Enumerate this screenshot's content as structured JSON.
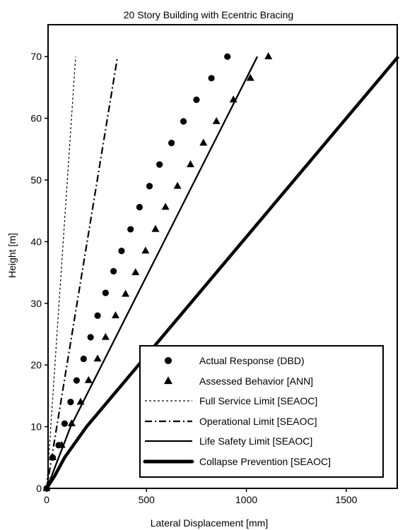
{
  "chart_data": {
    "type": "scatter",
    "title": "20 Story Building with Ecentric Bracing",
    "xlabel": "Lateral Displacement [mm]",
    "ylabel": "Height [m]",
    "xlim": [
      0,
      1800
    ],
    "ylim": [
      0,
      75
    ],
    "xticks": [
      0,
      500,
      1000,
      1500
    ],
    "yticks": [
      0,
      10,
      20,
      30,
      40,
      50,
      60,
      70
    ],
    "grid": false,
    "legend_position": "bottom-right",
    "series": [
      {
        "name": "Actual Response (DBD)",
        "kind": "markers",
        "marker": "circle",
        "points": [
          [
            0,
            0
          ],
          [
            30,
            5
          ],
          [
            60,
            7
          ],
          [
            90,
            10.5
          ],
          [
            120,
            14
          ],
          [
            150,
            17.5
          ],
          [
            185,
            21
          ],
          [
            220,
            24.5
          ],
          [
            255,
            28
          ],
          [
            295,
            31.7
          ],
          [
            335,
            35.2
          ],
          [
            375,
            38.5
          ],
          [
            420,
            42
          ],
          [
            465,
            45.6
          ],
          [
            515,
            49
          ],
          [
            565,
            52.5
          ],
          [
            625,
            56
          ],
          [
            685,
            59.5
          ],
          [
            750,
            63
          ],
          [
            825,
            66.5
          ],
          [
            905,
            70
          ]
        ]
      },
      {
        "name": "Assessed Behavior [ANN]",
        "kind": "markers",
        "marker": "triangle",
        "points": [
          [
            0,
            0
          ],
          [
            30,
            5
          ],
          [
            75,
            7
          ],
          [
            125,
            10.5
          ],
          [
            170,
            14
          ],
          [
            210,
            17.5
          ],
          [
            255,
            21
          ],
          [
            295,
            24.5
          ],
          [
            345,
            28
          ],
          [
            395,
            31.5
          ],
          [
            445,
            35
          ],
          [
            495,
            38.5
          ],
          [
            545,
            42
          ],
          [
            595,
            45.6
          ],
          [
            655,
            49
          ],
          [
            720,
            52.5
          ],
          [
            785,
            56
          ],
          [
            850,
            59.5
          ],
          [
            935,
            63
          ],
          [
            1020,
            66.5
          ],
          [
            1110,
            70
          ]
        ]
      },
      {
        "name": "Full Service Limit [SEAOC]",
        "kind": "line",
        "style": "dotted",
        "points": [
          [
            0,
            0
          ],
          [
            145,
            70
          ]
        ]
      },
      {
        "name": "Operational Limit [SEAOC]",
        "kind": "line",
        "style": "dashdot",
        "points": [
          [
            0,
            0
          ],
          [
            355,
            70
          ]
        ]
      },
      {
        "name": "Life Safety Limit [SEAOC]",
        "kind": "line",
        "style": "solid",
        "points": [
          [
            0,
            0
          ],
          [
            25,
            2
          ],
          [
            60,
            5
          ],
          [
            120,
            10
          ],
          [
            1055,
            70
          ]
        ]
      },
      {
        "name": "Collapse Prevention [SEAOC]",
        "kind": "line",
        "style": "thick",
        "points": [
          [
            0,
            0
          ],
          [
            40,
            2
          ],
          [
            90,
            5
          ],
          [
            200,
            10
          ],
          [
            1760,
            70
          ]
        ]
      }
    ]
  }
}
